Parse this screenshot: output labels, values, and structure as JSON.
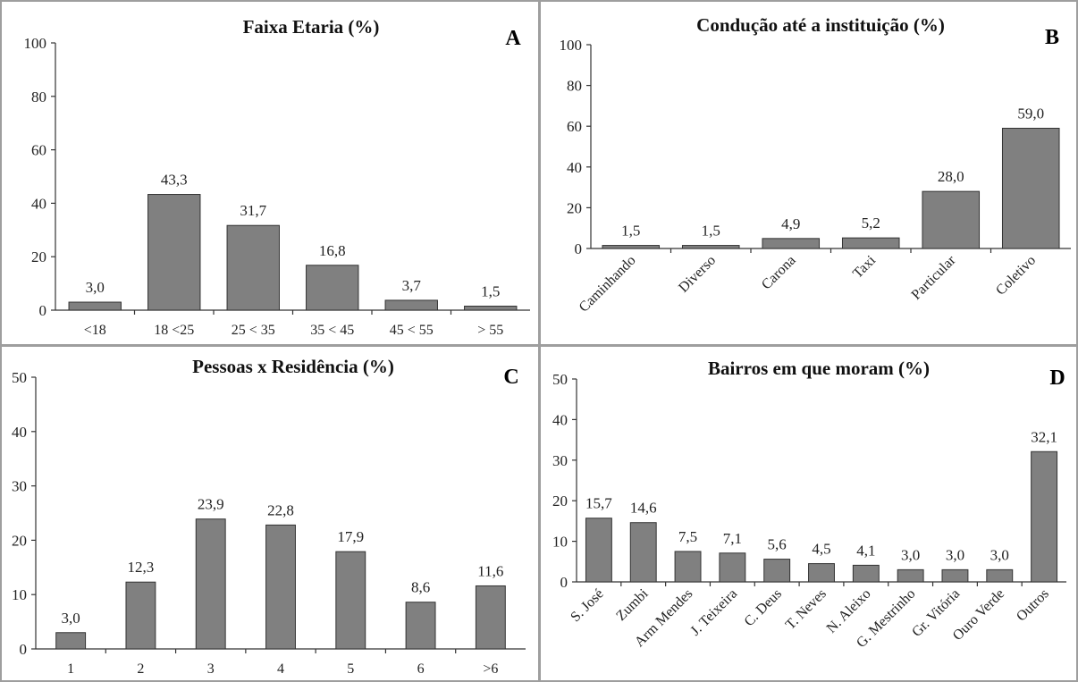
{
  "chart_data": [
    {
      "panel": "A",
      "type": "bar",
      "title": "Faixa Etaria (%)",
      "categories": [
        "<18",
        "18 <25",
        "25 < 35",
        "35 < 45",
        "45 < 55",
        "> 55"
      ],
      "values": [
        3.0,
        43.3,
        31.7,
        16.8,
        3.7,
        1.5
      ],
      "labels": [
        "3,0",
        "43,3",
        "31,7",
        "16,8",
        "3,7",
        "1,5"
      ],
      "ylim": [
        0,
        100
      ],
      "yticks": [
        0,
        20,
        40,
        60,
        80,
        100
      ],
      "xlabel": "",
      "ylabel": "",
      "rotate_categories": false
    },
    {
      "panel": "B",
      "type": "bar",
      "title": "Condução até a instituição (%)",
      "categories": [
        "Caminhando",
        "Diverso",
        "Carona",
        "Taxi",
        "Particular",
        "Coletivo"
      ],
      "values": [
        1.5,
        1.5,
        4.9,
        5.2,
        28.0,
        59.0
      ],
      "labels": [
        "1,5",
        "1,5",
        "4,9",
        "5,2",
        "28,0",
        "59,0"
      ],
      "ylim": [
        0,
        100
      ],
      "yticks": [
        0,
        20,
        40,
        60,
        80,
        100
      ],
      "xlabel": "",
      "ylabel": "",
      "rotate_categories": true
    },
    {
      "panel": "C",
      "type": "bar",
      "title": "Pessoas x Residência (%)",
      "categories": [
        "1",
        "2",
        "3",
        "4",
        "5",
        "6",
        ">6"
      ],
      "values": [
        3.0,
        12.3,
        23.9,
        22.8,
        17.9,
        8.6,
        11.6
      ],
      "labels": [
        "3,0",
        "12,3",
        "23,9",
        "22,8",
        "17,9",
        "8,6",
        "11,6"
      ],
      "ylim": [
        0,
        50
      ],
      "yticks": [
        0,
        10,
        20,
        30,
        40,
        50
      ],
      "xlabel": "",
      "ylabel": "",
      "rotate_categories": false
    },
    {
      "panel": "D",
      "type": "bar",
      "title": "Bairros em que moram (%)",
      "categories": [
        "S. José",
        "Zumbi",
        "Arm Mendes",
        "J. Teixeira",
        "C. Deus",
        "T. Neves",
        "N. Aleixo",
        "G. Mestrinho",
        "Gr. Vitória",
        "Ouro Verde",
        "Outros"
      ],
      "values": [
        15.7,
        14.6,
        7.5,
        7.1,
        5.6,
        4.5,
        4.1,
        3.0,
        3.0,
        3.0,
        32.1
      ],
      "labels": [
        "15,7",
        "14,6",
        "7,5",
        "7,1",
        "5,6",
        "4,5",
        "4,1",
        "3,0",
        "3,0",
        "3,0",
        "32,1"
      ],
      "ylim": [
        0,
        50
      ],
      "yticks": [
        0,
        10,
        20,
        30,
        40,
        50
      ],
      "xlabel": "",
      "ylabel": "",
      "rotate_categories": true
    }
  ],
  "style": {
    "bar_color": "#808080",
    "bar_stroke": "#333333",
    "divider_color": "#9e9e9e"
  }
}
